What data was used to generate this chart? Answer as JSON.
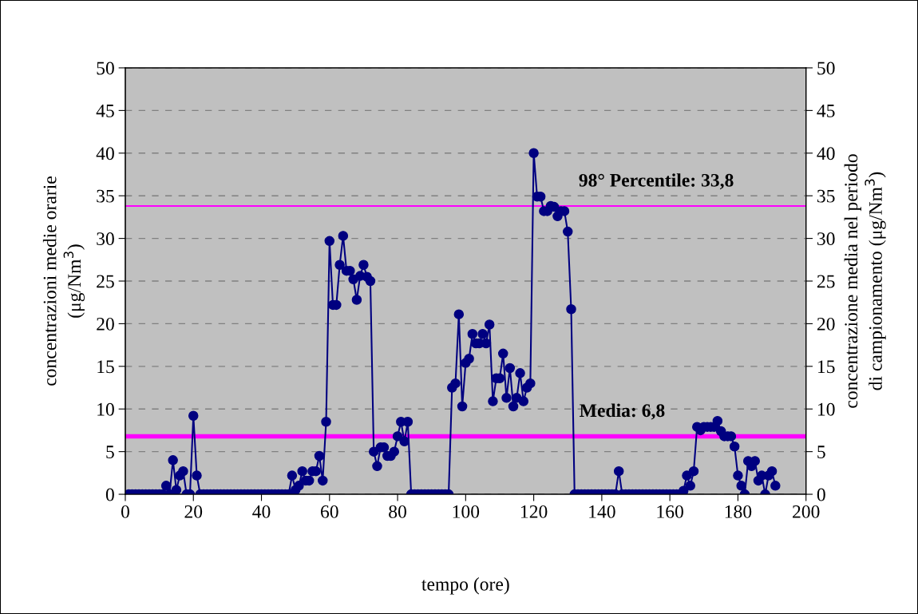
{
  "chart_data": {
    "type": "line",
    "xlabel": "tempo (ore)",
    "ylabel": "concentrazioni medie orarie\n(μg/Nm$^{3}$)",
    "y2label": "concentrazione media nel periodo\ndi campionamento (μg/Nm$^{3}$)",
    "x": [
      1,
      2,
      3,
      4,
      5,
      6,
      7,
      8,
      9,
      10,
      11,
      12,
      13,
      14,
      15,
      16,
      17,
      18,
      19,
      20,
      21,
      22,
      23,
      24,
      25,
      26,
      27,
      28,
      29,
      30,
      31,
      32,
      33,
      34,
      35,
      36,
      37,
      38,
      39,
      40,
      41,
      42,
      43,
      44,
      45,
      46,
      47,
      48,
      49,
      50,
      51,
      52,
      53,
      54,
      55,
      56,
      57,
      58,
      59,
      60,
      61,
      62,
      63,
      64,
      65,
      66,
      67,
      68,
      69,
      70,
      71,
      72,
      73,
      74,
      75,
      76,
      77,
      78,
      79,
      80,
      81,
      82,
      83,
      84,
      85,
      86,
      87,
      88,
      89,
      90,
      91,
      92,
      93,
      94,
      95,
      96,
      97,
      98,
      99,
      100,
      101,
      102,
      103,
      104,
      105,
      106,
      107,
      108,
      109,
      110,
      111,
      112,
      113,
      114,
      115,
      116,
      117,
      118,
      119,
      120,
      121,
      122,
      123,
      124,
      125,
      126,
      127,
      128,
      129,
      130,
      131,
      132,
      133,
      134,
      135,
      136,
      137,
      138,
      139,
      140,
      141,
      142,
      143,
      144,
      145,
      146,
      147,
      148,
      149,
      150,
      151,
      152,
      153,
      154,
      155,
      156,
      157,
      158,
      159,
      160,
      161,
      162,
      163,
      164,
      165,
      166,
      167,
      168,
      169,
      170,
      171,
      172,
      173,
      174,
      175,
      176,
      177,
      178,
      179,
      180,
      181,
      182,
      183,
      184,
      185,
      186,
      187,
      188,
      189,
      190,
      191
    ],
    "series": [
      {
        "color": "#000080",
        "values": [
          0,
          0,
          0,
          0,
          0,
          0,
          0,
          0,
          0,
          0,
          0,
          1.0,
          0,
          4.0,
          0.5,
          2.2,
          2.7,
          0,
          0,
          9.2,
          2.2,
          0,
          0,
          0,
          0,
          0,
          0,
          0,
          0,
          0,
          0,
          0,
          0,
          0,
          0,
          0,
          0,
          0,
          0,
          0,
          0,
          0,
          0,
          0,
          0,
          0,
          0,
          0,
          2.2,
          0.5,
          1.0,
          2.7,
          1.6,
          1.6,
          2.7,
          2.7,
          4.5,
          1.6,
          8.5,
          29.7,
          22.2,
          22.2,
          26.9,
          30.3,
          26.2,
          26.2,
          25.2,
          22.8,
          25.6,
          26.9,
          25.5,
          25.0,
          5.0,
          3.3,
          5.5,
          5.5,
          4.5,
          4.5,
          5.0,
          6.8,
          8.5,
          6.2,
          8.5,
          0,
          0,
          0,
          0,
          0,
          0,
          0,
          0,
          0,
          0,
          0,
          0,
          12.5,
          13.0,
          21.1,
          10.3,
          15.4,
          15.9,
          18.8,
          17.7,
          17.7,
          18.8,
          17.7,
          19.9,
          10.9,
          13.6,
          13.6,
          16.5,
          11.3,
          14.8,
          10.3,
          11.3,
          14.2,
          10.9,
          12.5,
          13.0,
          40.0,
          34.9,
          34.9,
          33.2,
          33.2,
          33.8,
          33.7,
          32.6,
          33.2,
          33.2,
          30.8,
          21.7,
          0,
          0,
          0,
          0,
          0,
          0,
          0,
          0,
          0,
          0,
          0,
          0,
          0,
          2.7,
          0,
          0,
          0,
          0,
          0,
          0,
          0,
          0,
          0,
          0,
          0,
          0,
          0,
          0,
          0,
          0,
          0,
          0,
          0.4,
          2.2,
          1.0,
          2.7,
          7.9,
          7.5,
          7.9,
          7.9,
          7.9,
          7.9,
          8.6,
          7.4,
          6.8,
          6.8,
          6.8,
          5.6,
          2.2,
          1.0,
          0,
          3.9,
          3.3,
          3.9,
          1.6,
          2.2,
          0,
          2.2,
          2.7,
          1.0
        ]
      }
    ],
    "xlim": [
      0,
      200
    ],
    "xticks": [
      0,
      20,
      40,
      60,
      80,
      100,
      120,
      140,
      160,
      180,
      200
    ],
    "ylim": [
      0,
      50
    ],
    "yticks": [
      0,
      5,
      10,
      15,
      20,
      25,
      30,
      35,
      40,
      45,
      50
    ],
    "y2lim": [
      0,
      50
    ],
    "y2ticks": [
      0,
      5,
      10,
      15,
      20,
      25,
      30,
      35,
      40,
      45,
      50
    ],
    "ref_lines": [
      {
        "axis": "y",
        "value": 33.8,
        "label": "98° Percentile: 33,8",
        "color": "#ff00ff"
      },
      {
        "axis": "y",
        "value": 6.8,
        "label": "Media: 6,8",
        "color": "#ff00ff"
      }
    ],
    "grid": "y",
    "marker": "circle",
    "line_style": "solid"
  }
}
